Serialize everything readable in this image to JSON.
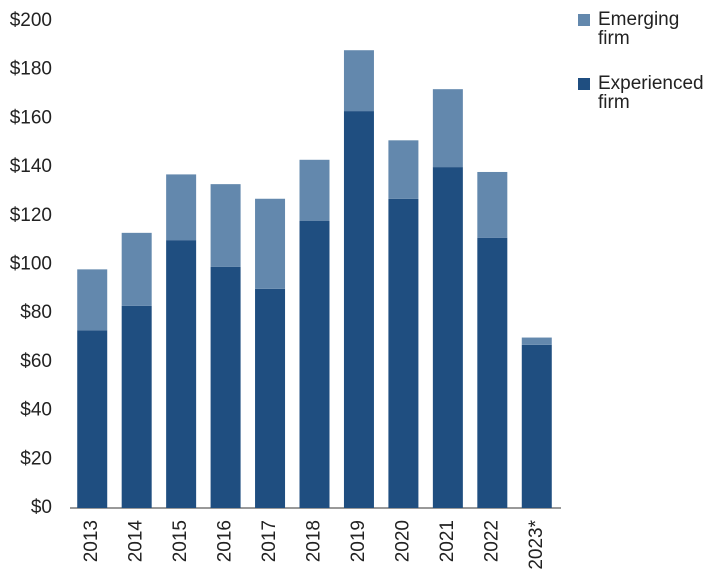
{
  "chart_data": {
    "type": "stacked_bar",
    "categories": [
      "2013",
      "2014",
      "2015",
      "2016",
      "2017",
      "2018",
      "2019",
      "2020",
      "2021",
      "2022",
      "2023*"
    ],
    "series": [
      {
        "name": "Emerging firm",
        "color": "#6388ad",
        "values": [
          25,
          30,
          27,
          34,
          37,
          25,
          25,
          24,
          32,
          27,
          3
        ]
      },
      {
        "name": "Experienced firm",
        "color": "#1f4e80",
        "values": [
          73,
          83,
          110,
          99,
          90,
          118,
          163,
          127,
          140,
          111,
          67
        ]
      }
    ],
    "ylim": [
      0,
      200
    ],
    "yticks": [
      {
        "value": 0,
        "label": "$0"
      },
      {
        "value": 20,
        "label": "$20"
      },
      {
        "value": 40,
        "label": "$40"
      },
      {
        "value": 60,
        "label": "$60"
      },
      {
        "value": 80,
        "label": "$80"
      },
      {
        "value": 100,
        "label": "$100"
      },
      {
        "value": 120,
        "label": "$120"
      },
      {
        "value": 140,
        "label": "$140"
      },
      {
        "value": 160,
        "label": "$160"
      },
      {
        "value": 180,
        "label": "$180"
      },
      {
        "value": 200,
        "label": "$200"
      }
    ],
    "grid": false
  }
}
